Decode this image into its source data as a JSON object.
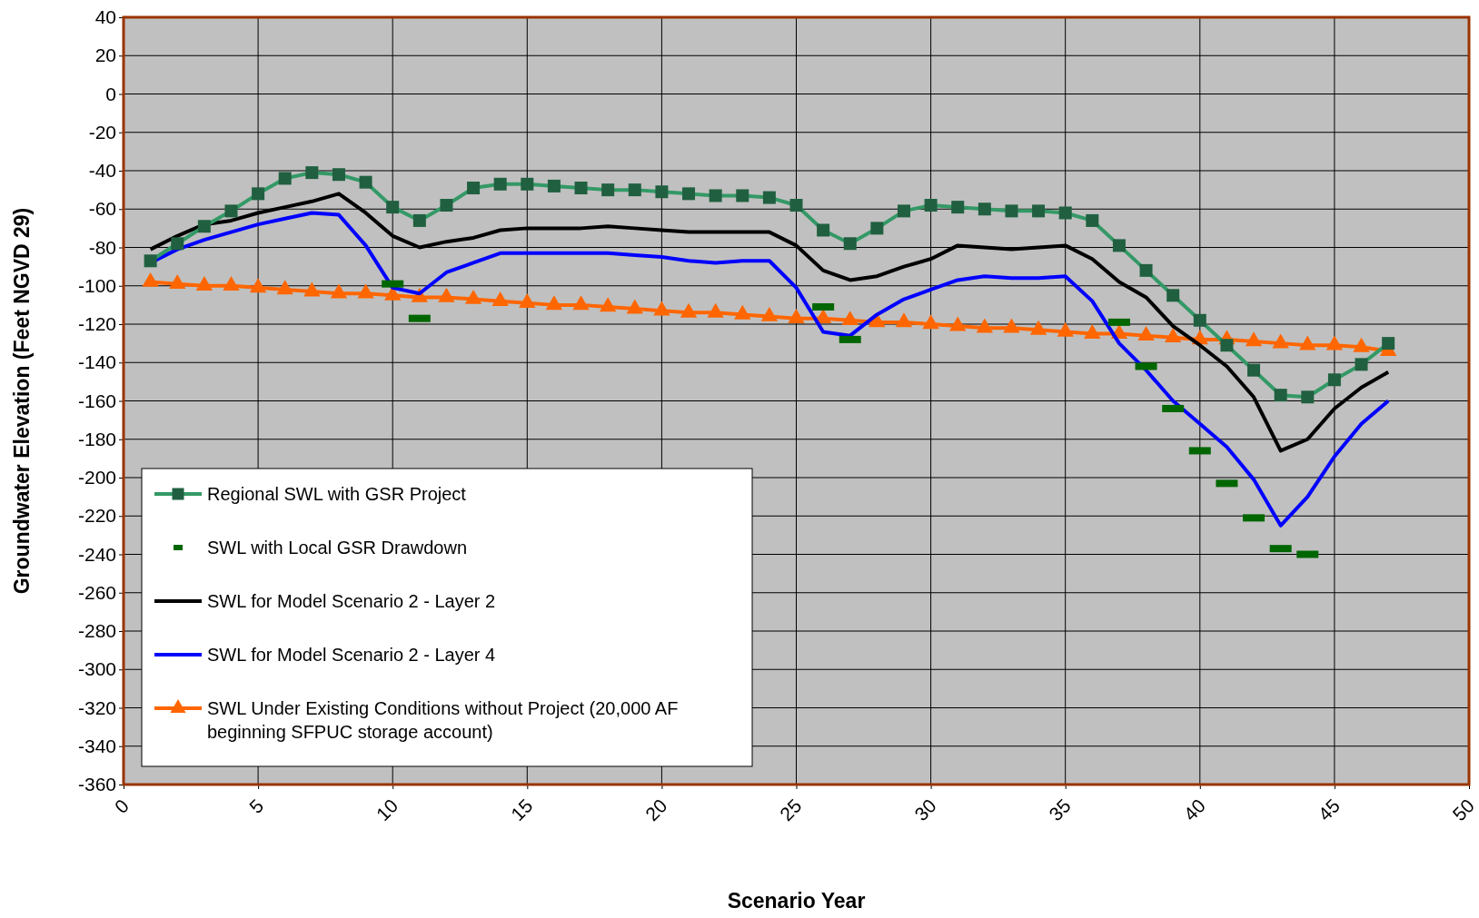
{
  "chart_data": {
    "type": "line",
    "xlabel": "Scenario Year",
    "ylabel": "Groundwater Elevation (Feet NGVD 29)",
    "xlim": [
      0,
      50
    ],
    "xticks": [
      0,
      5,
      10,
      15,
      20,
      25,
      30,
      35,
      40,
      45,
      50
    ],
    "ylim": [
      -360,
      40
    ],
    "yticks": [
      -360,
      -340,
      -320,
      -300,
      -280,
      -260,
      -240,
      -220,
      -200,
      -180,
      -160,
      -140,
      -120,
      -100,
      -80,
      -60,
      -40,
      -20,
      0,
      20,
      40
    ],
    "grid": true,
    "legend": "bottom left",
    "x": [
      1,
      2,
      3,
      4,
      5,
      6,
      7,
      8,
      9,
      10,
      11,
      12,
      13,
      14,
      15,
      16,
      17,
      18,
      19,
      20,
      21,
      22,
      23,
      24,
      25,
      26,
      27,
      28,
      29,
      30,
      31,
      32,
      33,
      34,
      35,
      36,
      37,
      38,
      39,
      40,
      41,
      42,
      43,
      44,
      45,
      46,
      47
    ],
    "series": [
      {
        "name": "Regional SWL with GSR Project",
        "color": "#339966",
        "marker": "square",
        "values": [
          -87,
          -78,
          -69,
          -61,
          -52,
          -44,
          -41,
          -42,
          -46,
          -59,
          -66,
          -58,
          -49,
          -47,
          -47,
          -48,
          -49,
          -50,
          -50,
          -51,
          -52,
          -53,
          -53,
          -54,
          -58,
          -71,
          -78,
          -70,
          -61,
          -58,
          -59,
          -60,
          -61,
          -61,
          -62,
          -66,
          -79,
          -92,
          -105,
          -118,
          -131,
          -144,
          -157,
          -158,
          -149,
          -141,
          -130
        ]
      },
      {
        "name": "SWL with Local GSR Drawdown",
        "type": "scatter",
        "color": "#006600",
        "values": [
          null,
          null,
          null,
          null,
          null,
          null,
          null,
          null,
          null,
          -99,
          -117,
          null,
          null,
          null,
          null,
          null,
          null,
          null,
          null,
          null,
          null,
          null,
          null,
          null,
          null,
          -111,
          -128,
          null,
          null,
          null,
          null,
          null,
          null,
          null,
          null,
          null,
          -119,
          -142,
          -164,
          -186,
          -203,
          -221,
          -237,
          -240,
          null,
          null,
          null
        ]
      },
      {
        "name": "SWL for Model Scenario 2 - Layer 2",
        "color": "#000000",
        "marker": "none",
        "values": [
          -81,
          -74,
          -68,
          -66,
          -62,
          -59,
          -56,
          -52,
          -62,
          -74,
          -80,
          -77,
          -75,
          -71,
          -70,
          -70,
          -70,
          -69,
          -70,
          -71,
          -72,
          -72,
          -72,
          -72,
          -79,
          -92,
          -97,
          -95,
          -90,
          -86,
          -79,
          -80,
          -81,
          -80,
          -79,
          -86,
          -98,
          -106,
          -121,
          -131,
          -142,
          -158,
          -186,
          -180,
          -164,
          -153,
          -145
        ]
      },
      {
        "name": "SWL for Model Scenario 2 - Layer 4",
        "color": "#0000ff",
        "marker": "none",
        "values": [
          -88,
          -81,
          -76,
          -72,
          -68,
          -65,
          -62,
          -63,
          -79,
          -101,
          -104,
          -93,
          -88,
          -83,
          -83,
          -83,
          -83,
          -83,
          -84,
          -85,
          -87,
          -88,
          -87,
          -87,
          -101,
          -124,
          -126,
          -115,
          -107,
          -102,
          -97,
          -95,
          -96,
          -96,
          -95,
          -108,
          -130,
          -144,
          -160,
          -172,
          -184,
          -201,
          -225,
          -210,
          -189,
          -172,
          -160
        ]
      },
      {
        "name": "SWL Under Existing Conditions without Project (20,000 AF beginning SFPUC storage account)",
        "color": "#ff6600",
        "marker": "triangle",
        "values": [
          -98,
          -99,
          -100,
          -100,
          -101,
          -102,
          -103,
          -104,
          -104,
          -105,
          -106,
          -106,
          -107,
          -108,
          -109,
          -110,
          -110,
          -111,
          -112,
          -113,
          -114,
          -114,
          -115,
          -116,
          -117,
          -117,
          -118,
          -119,
          -119,
          -120,
          -121,
          -122,
          -122,
          -123,
          -124,
          -125,
          -125,
          -126,
          -127,
          -128,
          -128,
          -129,
          -130,
          -131,
          -131,
          -132,
          -134
        ]
      }
    ]
  }
}
